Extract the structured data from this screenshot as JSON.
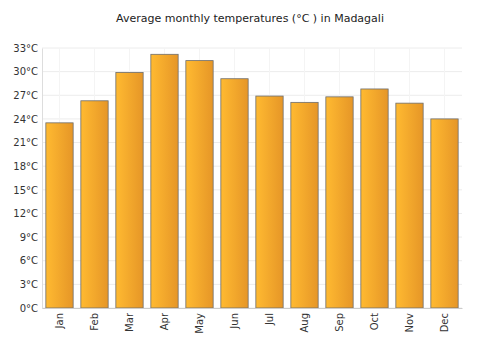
{
  "chart_data": {
    "type": "bar",
    "title": "Average monthly temperatures (°C ) in Madagali",
    "categories": [
      "Jan",
      "Feb",
      "Mar",
      "Apr",
      "May",
      "Jun",
      "Jul",
      "Aug",
      "Sep",
      "Oct",
      "Nov",
      "Dec"
    ],
    "values": [
      23.5,
      26.3,
      29.9,
      32.2,
      31.4,
      29.1,
      26.9,
      26.1,
      26.8,
      27.8,
      26.0,
      24.0
    ],
    "color": "#fba42b",
    "ylim": [
      0,
      33
    ],
    "yticks": [
      {
        "value": 0,
        "label": "0°C"
      },
      {
        "value": 3,
        "label": "3°C"
      },
      {
        "value": 6,
        "label": "6°C"
      },
      {
        "value": 9,
        "label": "9°C"
      },
      {
        "value": 12,
        "label": "12°C"
      },
      {
        "value": 15,
        "label": "15°C"
      },
      {
        "value": 18,
        "label": "18°C"
      },
      {
        "value": 21,
        "label": "21°C"
      },
      {
        "value": 24,
        "label": "24°C"
      },
      {
        "value": 27,
        "label": "27°C"
      },
      {
        "value": 30,
        "label": "30°C"
      },
      {
        "value": 33,
        "label": "33°C"
      }
    ],
    "grid": true
  }
}
